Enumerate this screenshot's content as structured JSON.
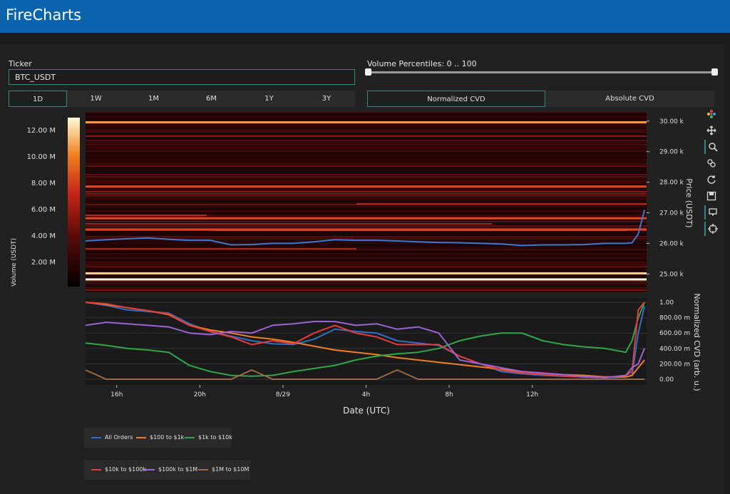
{
  "app": {
    "title": "FireCharts"
  },
  "ticker": {
    "label": "Ticker",
    "value": "BTC_USDT"
  },
  "volume_percentiles": {
    "label": "Volume Percentiles: 0 .. 100",
    "low": 0,
    "high": 100
  },
  "timeframes": [
    "1D",
    "1W",
    "1M",
    "6M",
    "1Y",
    "3Y"
  ],
  "selected_timeframe": "1D",
  "cvd_modes": [
    "Normalized CVD",
    "Absolute CVD"
  ],
  "selected_cvd_mode": "Normalized CVD",
  "modebar_icons": [
    "plotly-logo-icon",
    "pan-icon",
    "zoom-icon",
    "link-icon",
    "reset-icon",
    "save-icon",
    "hover-icon",
    "crosshair-icon"
  ],
  "colors": {
    "accent": "#2f8a86",
    "header": "#0a64ad"
  },
  "colorbar": {
    "title": "Volume (USDT)",
    "ticks": [
      "12.00 M",
      "10.00 M",
      "8.00 M",
      "6.00 M",
      "4.00 M",
      "2.00 M"
    ]
  },
  "chart_data": [
    {
      "type": "heatmap",
      "ylabel": "Price (USDT)",
      "yticks": [
        "30.00 k",
        "29.00 k",
        "28.00 k",
        "27.00 k",
        "26.00 k",
        "25.00 k"
      ],
      "ylim": [
        24.4,
        30.3
      ],
      "xlim": [
        0,
        27
      ],
      "x": [
        0,
        1,
        2,
        3,
        4,
        5,
        6,
        7,
        8,
        9,
        10,
        11,
        12,
        13,
        14,
        15,
        16,
        17,
        18,
        19,
        20,
        21,
        22,
        23,
        24,
        25,
        26,
        26.3,
        26.6,
        26.9
      ],
      "price": [
        26.08,
        26.12,
        26.15,
        26.18,
        26.13,
        26.1,
        26.1,
        25.95,
        25.96,
        26.0,
        26.0,
        26.05,
        26.12,
        26.1,
        26.1,
        26.08,
        26.05,
        26.03,
        26.02,
        26.0,
        25.98,
        25.93,
        25.95,
        25.95,
        25.96,
        26.0,
        26.0,
        26.02,
        26.3,
        27.1
      ],
      "bright_levels": [
        {
          "price": 29.96,
          "strength": 0.75
        },
        {
          "price": 25.02,
          "strength": 0.9
        },
        {
          "price": 24.82,
          "strength": 1.0
        },
        {
          "price": 27.86,
          "strength": 0.55
        },
        {
          "price": 26.82,
          "strength": 0.5
        },
        {
          "price": 26.45,
          "strength": 0.55
        }
      ]
    },
    {
      "type": "line",
      "xlabel": "Date (UTC)",
      "ylabel": "Normalized CVD (arb. u.)",
      "ylim": [
        0,
        1
      ],
      "xticks": [
        "16h",
        "20h",
        "8/29",
        "4h",
        "8h",
        "12h"
      ],
      "xtick_values": [
        1.5,
        5.5,
        9.5,
        13.5,
        17.5,
        21.5
      ],
      "yticks": [
        "1.00",
        "800.00 m",
        "600.00 m",
        "400.00 m",
        "200.00 m",
        "0.00"
      ],
      "ytick_values": [
        1.0,
        0.8,
        0.6,
        0.4,
        0.2,
        0.0
      ],
      "xlim": [
        0,
        27
      ],
      "x": [
        0,
        1,
        2,
        3,
        4,
        5,
        6,
        7,
        8,
        9,
        10,
        11,
        12,
        13,
        14,
        15,
        16,
        17,
        18,
        19,
        20,
        21,
        22,
        23,
        24,
        25,
        26,
        26.3,
        26.6,
        26.9
      ],
      "series": [
        {
          "name": "All Orders",
          "color": "#2f6fc2",
          "values": [
            1.0,
            0.96,
            0.9,
            0.88,
            0.86,
            0.72,
            0.62,
            0.56,
            0.5,
            0.46,
            0.45,
            0.52,
            0.65,
            0.62,
            0.6,
            0.5,
            0.47,
            0.44,
            0.3,
            0.2,
            0.1,
            0.07,
            0.05,
            0.04,
            0.03,
            0.02,
            0.03,
            0.05,
            0.6,
            0.95
          ]
        },
        {
          "name": "$100 to $1k",
          "color": "#f07f22",
          "values": [
            1.0,
            0.97,
            0.93,
            0.89,
            0.84,
            0.7,
            0.64,
            0.6,
            0.55,
            0.52,
            0.48,
            0.43,
            0.38,
            0.35,
            0.32,
            0.28,
            0.25,
            0.22,
            0.19,
            0.16,
            0.13,
            0.1,
            0.08,
            0.06,
            0.05,
            0.03,
            0.03,
            0.05,
            0.15,
            0.25
          ]
        },
        {
          "name": "$1k to $10k",
          "color": "#2ea84a",
          "values": [
            0.47,
            0.44,
            0.4,
            0.38,
            0.35,
            0.18,
            0.1,
            0.05,
            0.04,
            0.05,
            0.1,
            0.14,
            0.18,
            0.25,
            0.3,
            0.33,
            0.35,
            0.4,
            0.5,
            0.56,
            0.6,
            0.6,
            0.5,
            0.45,
            0.42,
            0.4,
            0.35,
            0.5,
            0.8,
            1.0
          ]
        },
        {
          "name": "$10k to $100k",
          "color": "#e53b3b",
          "values": [
            1.0,
            0.98,
            0.93,
            0.89,
            0.85,
            0.7,
            0.62,
            0.55,
            0.45,
            0.5,
            0.46,
            0.6,
            0.7,
            0.6,
            0.55,
            0.45,
            0.45,
            0.45,
            0.3,
            0.2,
            0.12,
            0.08,
            0.06,
            0.04,
            0.03,
            0.02,
            0.05,
            0.1,
            0.9,
            1.0
          ]
        },
        {
          "name": "$100k to $1M",
          "color": "#9b63d6",
          "values": [
            0.7,
            0.74,
            0.72,
            0.7,
            0.68,
            0.6,
            0.58,
            0.62,
            0.6,
            0.7,
            0.72,
            0.75,
            0.75,
            0.7,
            0.72,
            0.65,
            0.68,
            0.6,
            0.25,
            0.2,
            0.15,
            0.1,
            0.08,
            0.06,
            0.03,
            0.02,
            0.05,
            0.15,
            0.2,
            0.4
          ]
        },
        {
          "name": "$1M to $10M",
          "color": "#9a6a48",
          "values": [
            0.12,
            0.0,
            0.0,
            0.0,
            0.0,
            0.0,
            0.0,
            0.0,
            0.12,
            0.0,
            0.0,
            0.0,
            0.0,
            0.0,
            0.0,
            0.12,
            0.0,
            0.0,
            0.0,
            0.0,
            0.0,
            0.0,
            0.0,
            0.0,
            0.0,
            0.0,
            0.0,
            0.0,
            0.0,
            0.0
          ]
        }
      ]
    }
  ]
}
